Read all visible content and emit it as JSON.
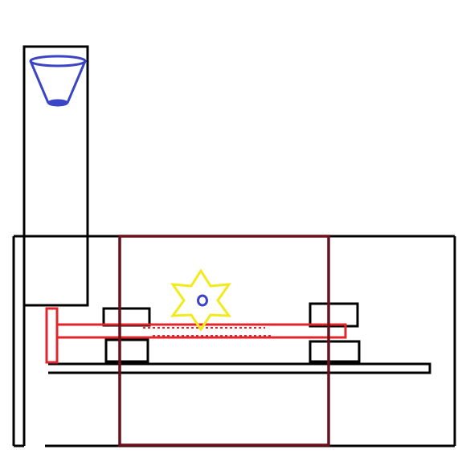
{
  "colors": {
    "background": "#ffffff",
    "outline": "#000000",
    "frame": "#6b0f1a",
    "rod": "#e0262d",
    "gear": "#f3ea1c",
    "funnel": "#3a44c4"
  },
  "components": [
    "hopper-column",
    "funnel-icon",
    "base-housing",
    "center-frame",
    "guide-rail",
    "lead-screw",
    "screw-handle",
    "upper-left-block",
    "lower-left-block",
    "upper-right-block",
    "lower-right-block",
    "star-gear-icon",
    "gear-hub"
  ]
}
